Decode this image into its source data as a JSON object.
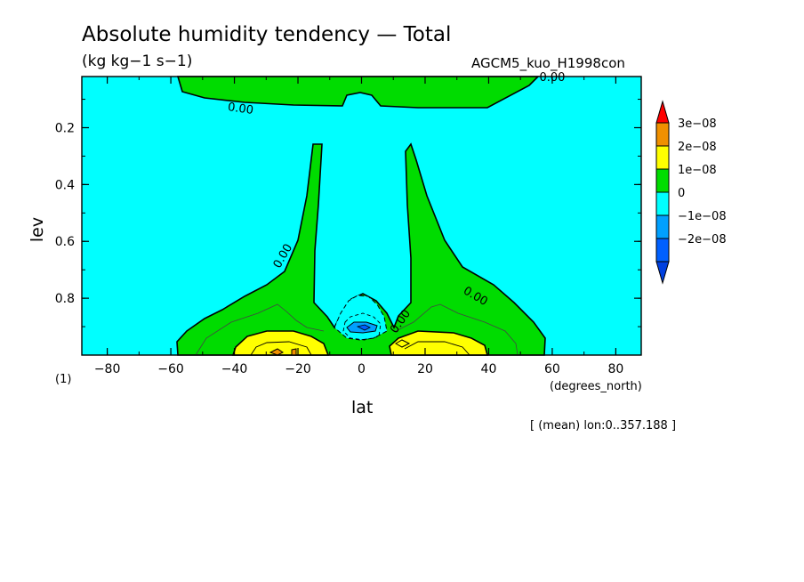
{
  "chart_data": {
    "type": "contour",
    "title": "Absolute humidity tendency — Total",
    "units": "(kg kg−1 s−1)",
    "run_label": "AGCM5_kuo_H1998con",
    "xlabel": "lat",
    "xunits": "(degrees_north)",
    "ylabel": "lev",
    "level_label": "(1)",
    "footer_note": "[ (mean) lon:0..357.188 ]",
    "xlim": [
      -88,
      88
    ],
    "ylim": [
      0.02,
      1.0
    ],
    "y_inverted": true,
    "grid": false,
    "x_ticks": [
      {
        "value": -80,
        "label": "−80"
      },
      {
        "value": -60,
        "label": "−60"
      },
      {
        "value": -40,
        "label": "−40"
      },
      {
        "value": -20,
        "label": "−20"
      },
      {
        "value": 0,
        "label": "0"
      },
      {
        "value": 20,
        "label": "20"
      },
      {
        "value": 40,
        "label": "40"
      },
      {
        "value": 60,
        "label": "60"
      },
      {
        "value": 80,
        "label": "80"
      }
    ],
    "y_ticks": [
      {
        "value": 0.2,
        "label": "0.2"
      },
      {
        "value": 0.4,
        "label": "0.4"
      },
      {
        "value": 0.6,
        "label": "0.6"
      },
      {
        "value": 0.8,
        "label": "0.8"
      }
    ],
    "contour_labels": [
      {
        "text": "0.00",
        "lat": -38,
        "lev": 0.13,
        "angle": 8
      },
      {
        "text": "0.00",
        "lat": -25,
        "lev": 0.65,
        "angle": -60
      },
      {
        "text": "0.00",
        "lat": 12,
        "lev": 0.88,
        "angle": -55
      },
      {
        "text": "0.00",
        "lat": 36,
        "lev": 0.79,
        "angle": 30
      },
      {
        "text": "0.00",
        "lat": 60,
        "lev": 0.02,
        "angle": 0
      }
    ],
    "colorbar": {
      "position": "right",
      "levels": [
        {
          "label": "3e−08",
          "color": "#f09000"
        },
        {
          "label": "2e−08",
          "color": "#ffff00"
        },
        {
          "label": "1e−08",
          "color": "#00dc00"
        },
        {
          "label": "0",
          "color": "#00ffff"
        },
        {
          "label": "−1e−08",
          "color": "#00a0ff"
        },
        {
          "label": "−2e−08",
          "color": "#0060ff"
        }
      ],
      "over_color": "#ff0000",
      "under_color": "#0040e0"
    },
    "colors": {
      "background": "#00ffff",
      "positive_1": "#00dc00",
      "positive_2": "#ffff00",
      "positive_3": "#f09000",
      "negative_1": "#00a0ff",
      "negative_2": "#0060ff"
    }
  }
}
